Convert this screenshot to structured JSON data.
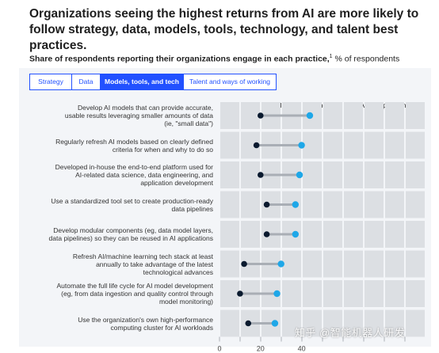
{
  "header": {
    "title": "Organizations seeing the highest returns from AI are more likely to follow strategy, data, models, tools, technology, and talent best practices.",
    "subtitle_bold": "Share of respondents reporting their organizations engage in each practice,",
    "subtitle_note": "1",
    "subtitle_rest": " % of respondents"
  },
  "tabs": [
    {
      "label": "Strategy",
      "active": false
    },
    {
      "label": "Data",
      "active": false
    },
    {
      "label": "Models, tools, and tech",
      "active": true
    },
    {
      "label": "Talent and ways of working",
      "active": false
    }
  ],
  "colors": {
    "accent": "#2251ff",
    "all_respondents": "#0a1a2f",
    "high_performers": "#1ea7e8",
    "connector": "#a9aeb5",
    "background_panel": "#f3f5f8",
    "grid_cell": "#dcdfe3"
  },
  "legend": {
    "all_label": "All other respondents",
    "high_label": "AI high performers",
    "high_note": "2"
  },
  "chart_data": {
    "type": "dumbbell",
    "xlim": [
      0,
      100
    ],
    "x_ticks": [
      0,
      20,
      40
    ],
    "grid": true,
    "legend_position": "top-right",
    "categories": [
      "Develop AI models that can provide accurate, usable results leveraging smaller amounts of data (ie, \"small data\")",
      "Regularly refresh AI models based on clearly defined criteria for when and why to do so",
      "Developed in-house the end-to-end platform used for AI-related data science, data engineering, and application development",
      "Use a standardized tool set to create production-ready data pipelines",
      "Develop modular components (eg, data model layers, data pipelines) so they can be reused in AI applications",
      "Refresh AI/machine learning tech stack at least annually to take advantage of the latest technological advances",
      "Automate the full life cycle for AI model development (eg, from data ingestion and quality control through model monitoring)",
      "Use the organization's own high-performance computing cluster for AI workloads"
    ],
    "category_lines": [
      [
        "Develop AI models that can provide accurate,",
        "usable results leveraging smaller amounts of data",
        "(ie, \"small data\")"
      ],
      [
        "Regularly refresh AI models based on clearly defined",
        "criteria for when and why to do so"
      ],
      [
        "Developed in-house the end-to-end platform used for",
        "AI-related data science, data engineering, and",
        "application development"
      ],
      [
        "Use a standardized tool set to create production-ready",
        "data pipelines"
      ],
      [
        "Develop modular components (eg, data model layers,",
        "data pipelines) so they can be reused in AI applications"
      ],
      [
        "Refresh AI/machine learning tech stack at least",
        "annually to take advantage of the latest",
        "technological advances"
      ],
      [
        "Automate the full life cycle for AI model development",
        "(eg, from data ingestion and quality control through",
        "model monitoring)"
      ],
      [
        "Use the organization's own high-performance",
        "computing cluster for AI workloads"
      ]
    ],
    "series": [
      {
        "name": "All other respondents",
        "values": [
          20,
          18,
          20,
          23,
          23,
          12,
          10,
          14
        ]
      },
      {
        "name": "AI high performers",
        "values": [
          44,
          40,
          39,
          37,
          37,
          30,
          28,
          27
        ]
      }
    ]
  },
  "watermark": "知乎 @智能机器人研发"
}
